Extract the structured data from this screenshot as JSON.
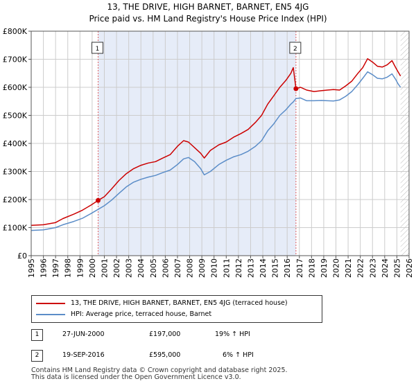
{
  "chart_data": {
    "type": "line",
    "title": "13, THE DRIVE, HIGH BARNET, BARNET, EN5 4JG",
    "subtitle": "Price paid vs. HM Land Registry's House Price Index (HPI)",
    "xlim": [
      1995.0,
      2026.0
    ],
    "ylim": [
      0,
      800000
    ],
    "x_ticks": [
      1995,
      1996,
      1997,
      1998,
      1999,
      2000,
      2001,
      2002,
      2003,
      2004,
      2005,
      2006,
      2007,
      2008,
      2009,
      2010,
      2011,
      2012,
      2013,
      2014,
      2015,
      2016,
      2017,
      2018,
      2019,
      2020,
      2021,
      2022,
      2023,
      2024,
      2025,
      2026
    ],
    "y_ticks": [
      {
        "value": 0,
        "label": "£0"
      },
      {
        "value": 100000,
        "label": "£100K"
      },
      {
        "value": 200000,
        "label": "£200K"
      },
      {
        "value": 300000,
        "label": "£300K"
      },
      {
        "value": 400000,
        "label": "£400K"
      },
      {
        "value": 500000,
        "label": "£500K"
      },
      {
        "value": 600000,
        "label": "£600K"
      },
      {
        "value": 700000,
        "label": "£700K"
      },
      {
        "value": 800000,
        "label": "£800K"
      }
    ],
    "shaded_range": [
      2000.49,
      2016.72
    ],
    "future_hatch_from": 2025.3,
    "series": [
      {
        "name": "13, THE DRIVE, HIGH BARNET, BARNET, EN5 4JG (terraced house)",
        "color": "#cc0000",
        "x": [
          1995.0,
          1996.0,
          1997.0,
          1997.6,
          1998.5,
          1999.2,
          1999.9,
          2000.49,
          2001.0,
          2001.6,
          2002.2,
          2002.8,
          2003.4,
          2004.0,
          2004.6,
          2005.2,
          2005.8,
          2006.4,
          2007.0,
          2007.5,
          2007.9,
          2008.4,
          2008.9,
          2009.2,
          2009.7,
          2010.4,
          2011.0,
          2011.6,
          2012.2,
          2012.8,
          2013.4,
          2013.9,
          2014.4,
          2014.9,
          2015.4,
          2015.9,
          2016.3,
          2016.5,
          2016.72,
          2017.1,
          2017.6,
          2018.2,
          2018.8,
          2019.3,
          2019.8,
          2020.3,
          2020.8,
          2021.3,
          2021.8,
          2022.2,
          2022.6,
          2023.0,
          2023.4,
          2023.8,
          2024.2,
          2024.6,
          2024.9,
          2025.1,
          2025.3
        ],
        "values": [
          108000,
          110000,
          118000,
          132000,
          148000,
          162000,
          180000,
          197000,
          210000,
          238000,
          268000,
          292000,
          310000,
          322000,
          330000,
          335000,
          348000,
          360000,
          390000,
          410000,
          405000,
          385000,
          365000,
          348000,
          375000,
          395000,
          405000,
          422000,
          435000,
          450000,
          475000,
          500000,
          540000,
          570000,
          600000,
          625000,
          650000,
          670000,
          595000,
          600000,
          590000,
          585000,
          588000,
          590000,
          592000,
          590000,
          605000,
          622000,
          650000,
          670000,
          702000,
          690000,
          675000,
          672000,
          680000,
          695000,
          670000,
          655000,
          640000
        ]
      },
      {
        "name": "HPI: Average price, terraced house, Barnet",
        "color": "#5b8dc8",
        "x": [
          1995.0,
          1996.0,
          1997.0,
          1997.6,
          1998.5,
          1999.2,
          1999.9,
          2000.49,
          2001.0,
          2001.6,
          2002.2,
          2002.8,
          2003.4,
          2004.0,
          2004.6,
          2005.2,
          2005.8,
          2006.4,
          2007.0,
          2007.5,
          2007.9,
          2008.4,
          2008.9,
          2009.2,
          2009.7,
          2010.4,
          2011.0,
          2011.6,
          2012.2,
          2012.8,
          2013.4,
          2013.9,
          2014.4,
          2014.9,
          2015.4,
          2015.9,
          2016.3,
          2016.5,
          2016.72,
          2017.1,
          2017.6,
          2018.2,
          2018.8,
          2019.3,
          2019.8,
          2020.3,
          2020.8,
          2021.3,
          2021.8,
          2022.2,
          2022.6,
          2023.0,
          2023.4,
          2023.8,
          2024.2,
          2024.6,
          2024.9,
          2025.1,
          2025.3
        ],
        "values": [
          90000,
          92000,
          100000,
          110000,
          122000,
          133000,
          150000,
          165000,
          178000,
          198000,
          222000,
          245000,
          262000,
          272000,
          280000,
          286000,
          296000,
          305000,
          325000,
          345000,
          350000,
          335000,
          310000,
          288000,
          300000,
          325000,
          340000,
          352000,
          360000,
          372000,
          390000,
          410000,
          445000,
          470000,
          500000,
          520000,
          540000,
          548000,
          560000,
          562000,
          552000,
          552000,
          553000,
          552000,
          551000,
          555000,
          568000,
          585000,
          610000,
          632000,
          655000,
          645000,
          632000,
          630000,
          636000,
          648000,
          628000,
          612000,
          600000
        ]
      }
    ],
    "markers": [
      {
        "label": "1",
        "x": 2000.49,
        "y": 197000
      },
      {
        "label": "2",
        "x": 2016.72,
        "y": 595000
      }
    ]
  },
  "legend": {
    "property": "13, THE DRIVE, HIGH BARNET, BARNET, EN5 4JG (terraced house)",
    "hpi": "HPI: Average price, terraced house, Barnet"
  },
  "sales": [
    {
      "num": "1",
      "date": "27-JUN-2000",
      "price": "£197,000",
      "hpi": "19% ↑ HPI"
    },
    {
      "num": "2",
      "date": "19-SEP-2016",
      "price": "£595,000",
      "hpi": "6% ↑ HPI"
    }
  ],
  "footer": {
    "line1": "Contains HM Land Registry data © Crown copyright and database right 2025.",
    "line2": "This data is licensed under the Open Government Licence v3.0."
  }
}
